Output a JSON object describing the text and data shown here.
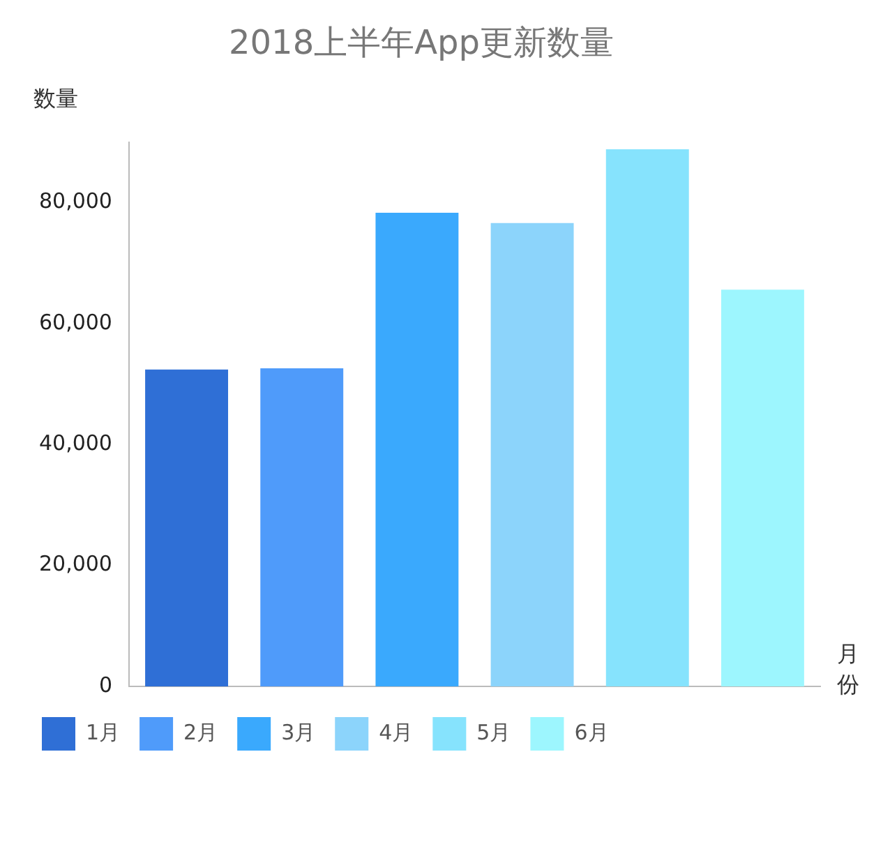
{
  "chart_data": {
    "type": "bar",
    "title": "2018上半年App更新数量",
    "ylabel": "数量",
    "xlabel": "月份",
    "categories": [
      null,
      null,
      null,
      null,
      null,
      null
    ],
    "series": [
      {
        "name": "1月",
        "color": "#2f6fd6",
        "values": [
          52400,
          null,
          null,
          null,
          null,
          null
        ]
      },
      {
        "name": "2月",
        "color": "#4f9bfa",
        "values": [
          null,
          52600,
          null,
          null,
          null,
          null
        ]
      },
      {
        "name": "3月",
        "color": "#3aa9fd",
        "values": [
          null,
          null,
          78300,
          null,
          null,
          null
        ]
      },
      {
        "name": "4月",
        "color": "#8cd4fb",
        "values": [
          null,
          null,
          null,
          76600,
          null,
          null
        ]
      },
      {
        "name": "5月",
        "color": "#86e3fd",
        "values": [
          null,
          null,
          null,
          null,
          88800,
          null
        ]
      },
      {
        "name": "6月",
        "color": "#9df6fe",
        "values": [
          null,
          null,
          null,
          null,
          null,
          65600
        ]
      }
    ],
    "ylim": [
      0,
      90000
    ],
    "yticks": [
      0,
      {
        "value": 20000,
        "label": "20,000"
      },
      {
        "value": 40000,
        "label": "40,000"
      },
      {
        "value": 60000,
        "label": "60,000"
      },
      {
        "value": 80000,
        "label": "80,000"
      }
    ],
    "grid": false,
    "legend": "bottom",
    "tick_labels": "y"
  }
}
